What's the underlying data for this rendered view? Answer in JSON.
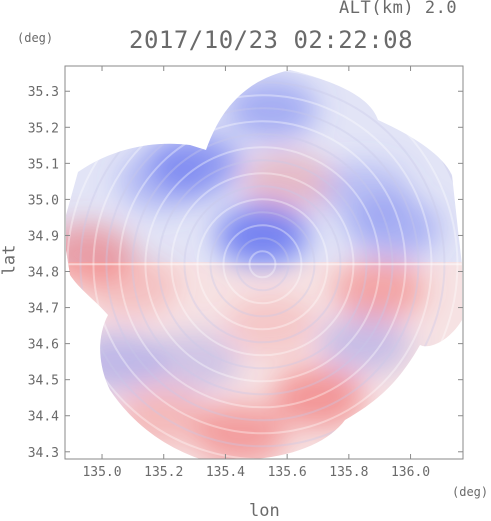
{
  "header": {
    "altitude_label": "ALT(km) 2.0",
    "timestamp": "2017/10/23 02:22:08"
  },
  "chart_data": {
    "type": "heatmap",
    "title": "2017/10/23 02:22:08",
    "subtitle": "ALT(km) 2.0",
    "xlabel": "lon",
    "ylabel": "lat",
    "x_unit": "(deg)",
    "y_unit": "(deg)",
    "xlim": [
      134.88,
      136.17
    ],
    "ylim": [
      34.28,
      35.37
    ],
    "x_ticks": [
      {
        "value": 135.0,
        "label": "135.0"
      },
      {
        "value": 135.2,
        "label": "135.2"
      },
      {
        "value": 135.4,
        "label": "135.4"
      },
      {
        "value": 135.6,
        "label": "135.6"
      },
      {
        "value": 135.8,
        "label": "135.8"
      },
      {
        "value": 136.0,
        "label": "136.0"
      }
    ],
    "y_ticks": [
      {
        "value": 34.3,
        "label": "34.3"
      },
      {
        "value": 34.4,
        "label": "34.4"
      },
      {
        "value": 34.5,
        "label": "34.5"
      },
      {
        "value": 34.6,
        "label": "34.6"
      },
      {
        "value": 34.7,
        "label": "34.7"
      },
      {
        "value": 34.8,
        "label": "34.8"
      },
      {
        "value": 34.9,
        "label": "34.9"
      },
      {
        "value": 35.0,
        "label": "35.0"
      },
      {
        "value": 35.1,
        "label": "35.1"
      },
      {
        "value": 35.2,
        "label": "35.2"
      },
      {
        "value": 35.3,
        "label": "35.3"
      }
    ],
    "grid": false,
    "colors": {
      "negative": "#5a6af0",
      "neutral": "#ececf5",
      "positive": "#f05a5a",
      "axis": "#8a8a8a",
      "text": "#6a6a6a"
    },
    "radar_center": {
      "lon": 135.52,
      "lat": 34.82
    },
    "boundary_lat": 34.82,
    "regions": [
      {
        "lon": 135.2,
        "lat": 35.05,
        "value": -0.35
      },
      {
        "lon": 135.85,
        "lat": 35.02,
        "value": -0.3
      },
      {
        "lon": 135.3,
        "lat": 35.1,
        "value": -0.6
      },
      {
        "lon": 135.55,
        "lat": 35.25,
        "value": -0.45
      },
      {
        "lon": 135.52,
        "lat": 34.9,
        "value": -0.8
      },
      {
        "lon": 135.6,
        "lat": 35.05,
        "value": 0.3
      },
      {
        "lon": 135.95,
        "lat": 34.92,
        "value": -0.4
      },
      {
        "lon": 134.95,
        "lat": 34.85,
        "value": 0.5
      },
      {
        "lon": 135.1,
        "lat": 34.76,
        "value": 0.25
      },
      {
        "lon": 135.9,
        "lat": 34.75,
        "value": 0.45
      },
      {
        "lon": 135.55,
        "lat": 34.65,
        "value": 0.2
      },
      {
        "lon": 135.3,
        "lat": 34.55,
        "value": -0.25
      },
      {
        "lon": 135.7,
        "lat": 34.45,
        "value": 0.55
      },
      {
        "lon": 135.45,
        "lat": 34.35,
        "value": 0.5
      },
      {
        "lon": 135.2,
        "lat": 34.4,
        "value": 0.3
      },
      {
        "lon": 135.85,
        "lat": 34.6,
        "value": -0.3
      },
      {
        "lon": 135.05,
        "lat": 34.55,
        "value": -0.35
      }
    ]
  }
}
